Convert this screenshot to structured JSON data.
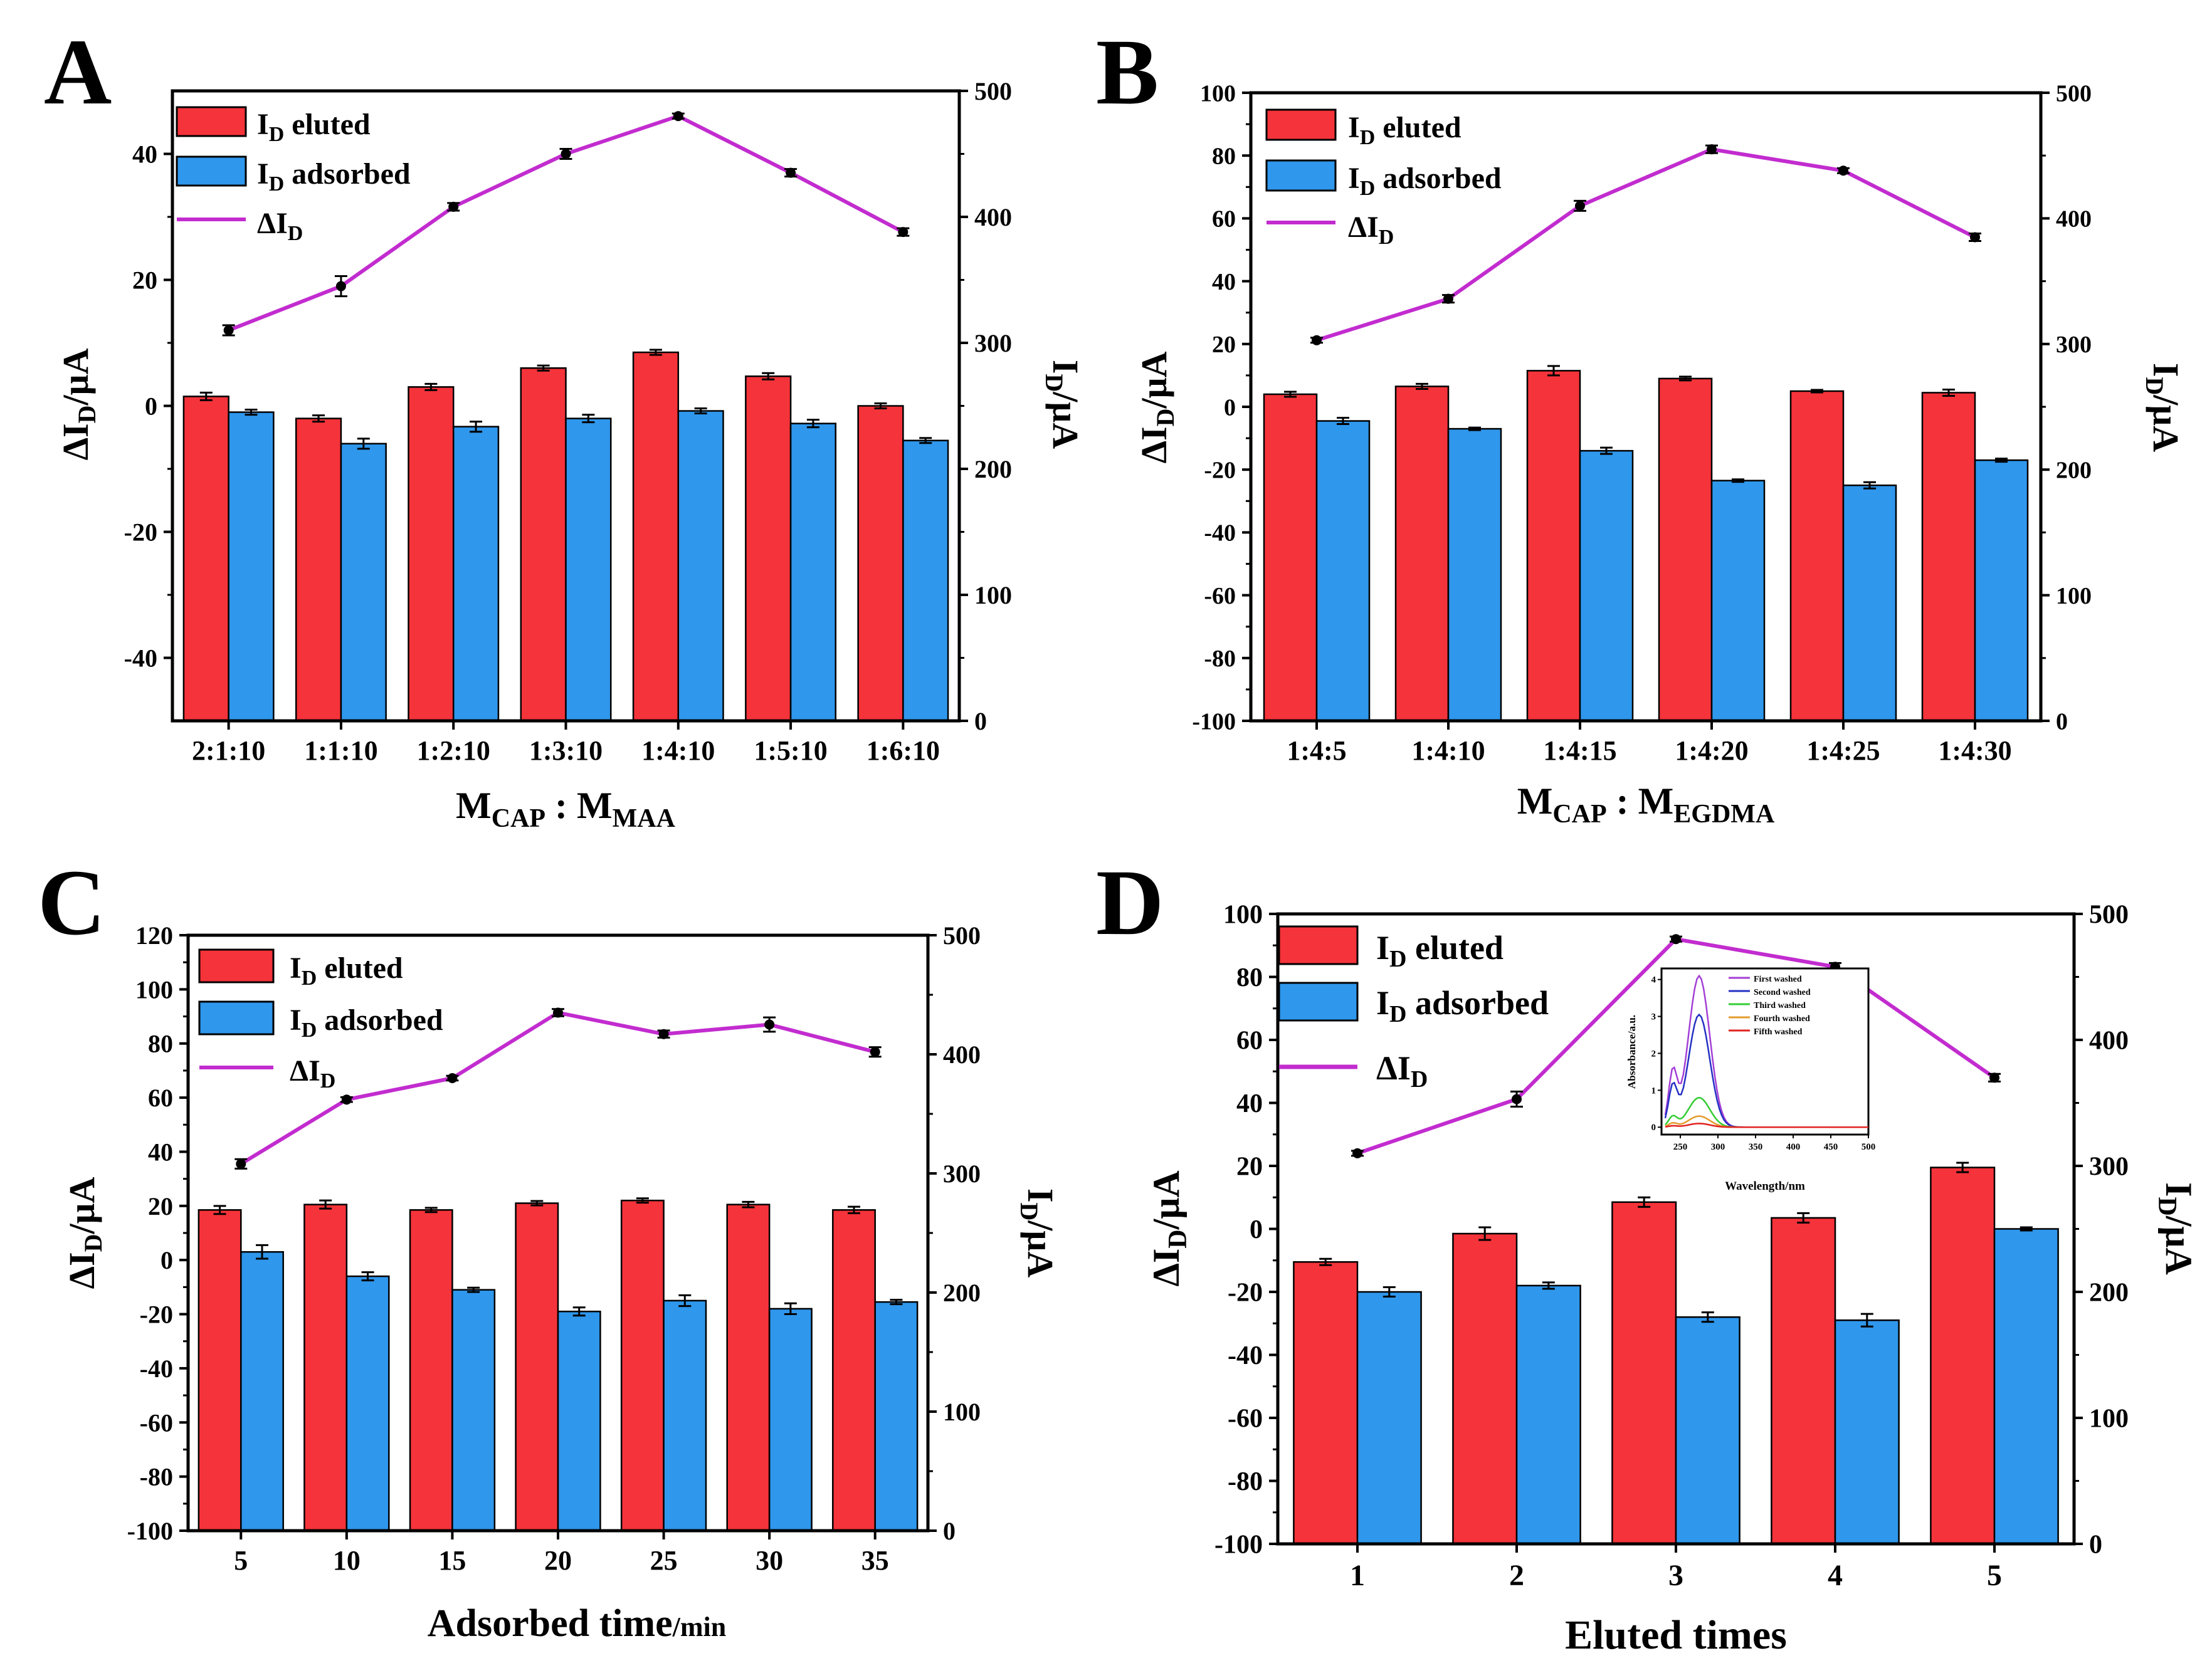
{
  "colors": {
    "eluted": "#f5333a",
    "adsorbed": "#2f97ec",
    "delta": "#c22ccf",
    "inset_series": [
      "#a33fd6",
      "#2531c4",
      "#33cc33",
      "#e39b2c",
      "#e0241f"
    ]
  },
  "legend_labels": {
    "eluted_main": "I",
    "eluted_sub": "D",
    "eluted_rest": " eluted",
    "adsorbed_main": "I",
    "adsorbed_sub": "D",
    "adsorbed_rest": " adsorbed",
    "delta_main": "ΔI",
    "delta_sub": "D"
  },
  "axis_labels": {
    "left_main": "ΔI",
    "left_sub": "D",
    "left_rest": "/μA",
    "right_main": "I",
    "right_sub": "D",
    "right_rest": "/μA"
  },
  "chart_data": [
    {
      "panel": "A",
      "type": "bar",
      "categories": [
        "2:1:10",
        "1:1:10",
        "1:2:10",
        "1:3:10",
        "1:4:10",
        "1:5:10",
        "1:6:10"
      ],
      "xlabel": {
        "main": "M",
        "sub1": "CAP",
        "mid": " : M",
        "sub2": "MAA",
        "small": ""
      },
      "ylim": [
        -50,
        50
      ],
      "yticks": [
        -40,
        -20,
        0,
        20,
        40
      ],
      "ylim2": [
        0,
        500
      ],
      "yticks2": [
        0,
        100,
        200,
        300,
        400,
        500
      ],
      "series": [
        {
          "name": "ID eluted",
          "kind": "bar",
          "values": [
            1.5,
            -2,
            3,
            6,
            8.5,
            4.7,
            0
          ],
          "errors": [
            0.6,
            0.5,
            0.5,
            0.4,
            0.4,
            0.5,
            0.4
          ]
        },
        {
          "name": "ID adsorbed",
          "kind": "bar",
          "values": [
            -1,
            -6,
            -3.3,
            -2,
            -0.8,
            -2.8,
            -5.5
          ],
          "errors": [
            0.4,
            0.8,
            0.8,
            0.6,
            0.4,
            0.6,
            0.4
          ]
        },
        {
          "name": "ΔID",
          "kind": "line",
          "axis": "right",
          "values": [
            310,
            345,
            408,
            450,
            480,
            435,
            388
          ],
          "errors": [
            4,
            8,
            3,
            4,
            2,
            3,
            3
          ]
        }
      ]
    },
    {
      "panel": "B",
      "type": "bar",
      "categories": [
        "1:4:5",
        "1:4:10",
        "1:4:15",
        "1:4:20",
        "1:4:25",
        "1:4:30"
      ],
      "xlabel": {
        "main": "M",
        "sub1": "CAP",
        "mid": " : M",
        "sub2": "EGDMA",
        "small": ""
      },
      "ylim": [
        -100,
        100
      ],
      "yticks": [
        -100,
        -80,
        -60,
        -40,
        -20,
        0,
        20,
        40,
        60,
        80,
        100
      ],
      "ylim2": [
        0,
        500
      ],
      "yticks2": [
        0,
        100,
        200,
        300,
        400,
        500
      ],
      "series": [
        {
          "name": "ID eluted",
          "kind": "bar",
          "values": [
            4,
            6.5,
            11.5,
            9,
            5,
            4.5
          ],
          "errors": [
            0.8,
            0.8,
            1.5,
            0.6,
            0.4,
            1.0
          ]
        },
        {
          "name": "ID adsorbed",
          "kind": "bar",
          "values": [
            -4.5,
            -7,
            -14,
            -23.5,
            -25,
            -17
          ],
          "errors": [
            1.0,
            0.4,
            1.0,
            0.4,
            1.0,
            0.5
          ]
        },
        {
          "name": "ΔID",
          "kind": "line",
          "axis": "right",
          "values": [
            303,
            336,
            410,
            455,
            438,
            385
          ],
          "errors": [
            2,
            3,
            4,
            3,
            2,
            3
          ]
        }
      ]
    },
    {
      "panel": "C",
      "type": "bar",
      "categories": [
        "5",
        "10",
        "15",
        "20",
        "25",
        "30",
        "35"
      ],
      "xlabel": {
        "main": "Adsorbed time",
        "sub1": "",
        "mid": "",
        "sub2": "",
        "small": "/min"
      },
      "ylim": [
        -100,
        120
      ],
      "yticks": [
        -100,
        -80,
        -60,
        -40,
        -20,
        0,
        20,
        40,
        60,
        80,
        100,
        120
      ],
      "ylim2": [
        0,
        500
      ],
      "yticks2": [
        0,
        100,
        200,
        300,
        400,
        500
      ],
      "series": [
        {
          "name": "ID eluted",
          "kind": "bar",
          "values": [
            18.5,
            20.5,
            18.5,
            21,
            22,
            20.5,
            18.5
          ],
          "errors": [
            1.5,
            1.5,
            0.8,
            0.8,
            0.8,
            1.0,
            1.2
          ]
        },
        {
          "name": "ID adsorbed",
          "kind": "bar",
          "values": [
            3,
            -6,
            -11,
            -19,
            -15,
            -18,
            -15.5
          ],
          "errors": [
            2.5,
            1.5,
            0.8,
            1.5,
            2.0,
            2.0,
            0.8
          ]
        },
        {
          "name": "ΔID",
          "kind": "line",
          "axis": "right",
          "values": [
            308,
            362,
            380,
            435,
            417,
            425,
            402
          ],
          "errors": [
            4,
            2,
            2,
            3,
            3,
            6,
            4
          ]
        }
      ]
    },
    {
      "panel": "D",
      "type": "bar",
      "categories": [
        "1",
        "2",
        "3",
        "4",
        "5"
      ],
      "xlabel": {
        "main": "Eluted times",
        "sub1": "",
        "mid": "",
        "sub2": "",
        "small": ""
      },
      "ylim": [
        -100,
        100
      ],
      "yticks": [
        -100,
        -80,
        -60,
        -40,
        -20,
        0,
        20,
        40,
        60,
        80,
        100
      ],
      "ylim2": [
        0,
        500
      ],
      "yticks2": [
        0,
        100,
        200,
        300,
        400,
        500
      ],
      "series": [
        {
          "name": "ID eluted",
          "kind": "bar",
          "values": [
            -10.5,
            -1.5,
            8.5,
            3.5,
            19.5
          ],
          "errors": [
            1.0,
            2.0,
            1.5,
            1.5,
            1.5
          ]
        },
        {
          "name": "ID adsorbed",
          "kind": "bar",
          "values": [
            -20,
            -18,
            -28,
            -29,
            0
          ],
          "errors": [
            1.5,
            1.0,
            1.5,
            2.0,
            0.5
          ]
        },
        {
          "name": "ΔID",
          "kind": "line",
          "axis": "right",
          "values": [
            310,
            353,
            480,
            458,
            370
          ],
          "errors": [
            2,
            6,
            2,
            3,
            3
          ]
        }
      ],
      "inset": {
        "type": "line",
        "xlabel": "Wavelength/nm",
        "ylabel": "Absorbance/a.u.",
        "xlim": [
          225,
          500
        ],
        "xticks": [
          250,
          300,
          350,
          400,
          450,
          500
        ],
        "ylim": [
          -0.2,
          4.3
        ],
        "yticks": [
          0,
          1,
          2,
          3,
          4
        ],
        "legend": [
          "First washed",
          "Second washed",
          "Third washed",
          "Fourth washed",
          "Fifth washed"
        ],
        "peak_wavelength": 275,
        "peak_heights": [
          4.1,
          3.05,
          0.8,
          0.3,
          0.1
        ]
      }
    }
  ]
}
